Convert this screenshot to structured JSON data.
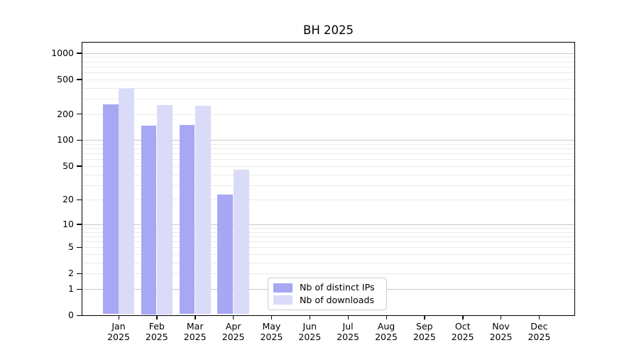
{
  "figure": {
    "title": "BH 2025"
  },
  "chart_data": {
    "type": "bar",
    "title": "BH 2025",
    "y_scale": "log10(1+y)",
    "grid": "on",
    "categories": [
      "Jan 2025",
      "Feb 2025",
      "Mar 2025",
      "Apr 2025",
      "May 2025",
      "Jun 2025",
      "Jul 2025",
      "Aug 2025",
      "Sep 2025",
      "Oct 2025",
      "Nov 2025",
      "Dec 2025"
    ],
    "series": [
      {
        "name": "Nb of distinct IPs",
        "color": "#a7a7f4",
        "values": [
          260,
          147,
          150,
          23,
          0,
          0,
          0,
          0,
          0,
          0,
          0,
          0
        ]
      },
      {
        "name": "Nb of downloads",
        "color": "#dadaf9",
        "values": [
          390,
          256,
          247,
          45,
          0,
          0,
          0,
          0,
          0,
          0,
          0,
          0
        ]
      }
    ],
    "ytick_labels": [
      0,
      1,
      2,
      5,
      10,
      20,
      50,
      100,
      200,
      500,
      1000
    ],
    "ylim": [
      0,
      1320
    ],
    "grid_major_values": [
      1,
      10,
      100,
      1000
    ],
    "grid_minor_values": [
      2,
      3,
      4,
      5,
      6,
      7,
      8,
      9,
      20,
      30,
      40,
      50,
      60,
      70,
      80,
      90,
      200,
      300,
      400,
      500,
      600,
      700,
      800,
      900
    ],
    "legend_position": "lower center",
    "colors": {
      "grid_major": "#c9c9c9",
      "grid_minor": "#eaeaea",
      "axis": "#000000"
    }
  }
}
